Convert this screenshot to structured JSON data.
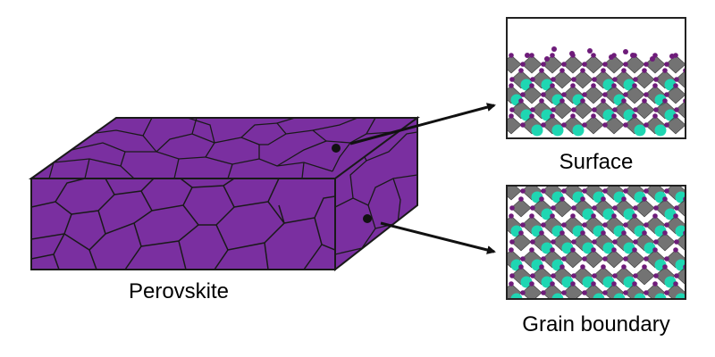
{
  "labels": {
    "block": "Perovskite",
    "surface": "Surface",
    "grain_boundary": "Grain boundary"
  },
  "colors": {
    "perovskite": "#7a2fa0",
    "grain_line": "#1a1a1a",
    "atom_purple": "#6e1c7a",
    "atom_teal": "#1fd6b2",
    "octahedron_gray": "#5a5a5a",
    "arrow": "#111111"
  }
}
